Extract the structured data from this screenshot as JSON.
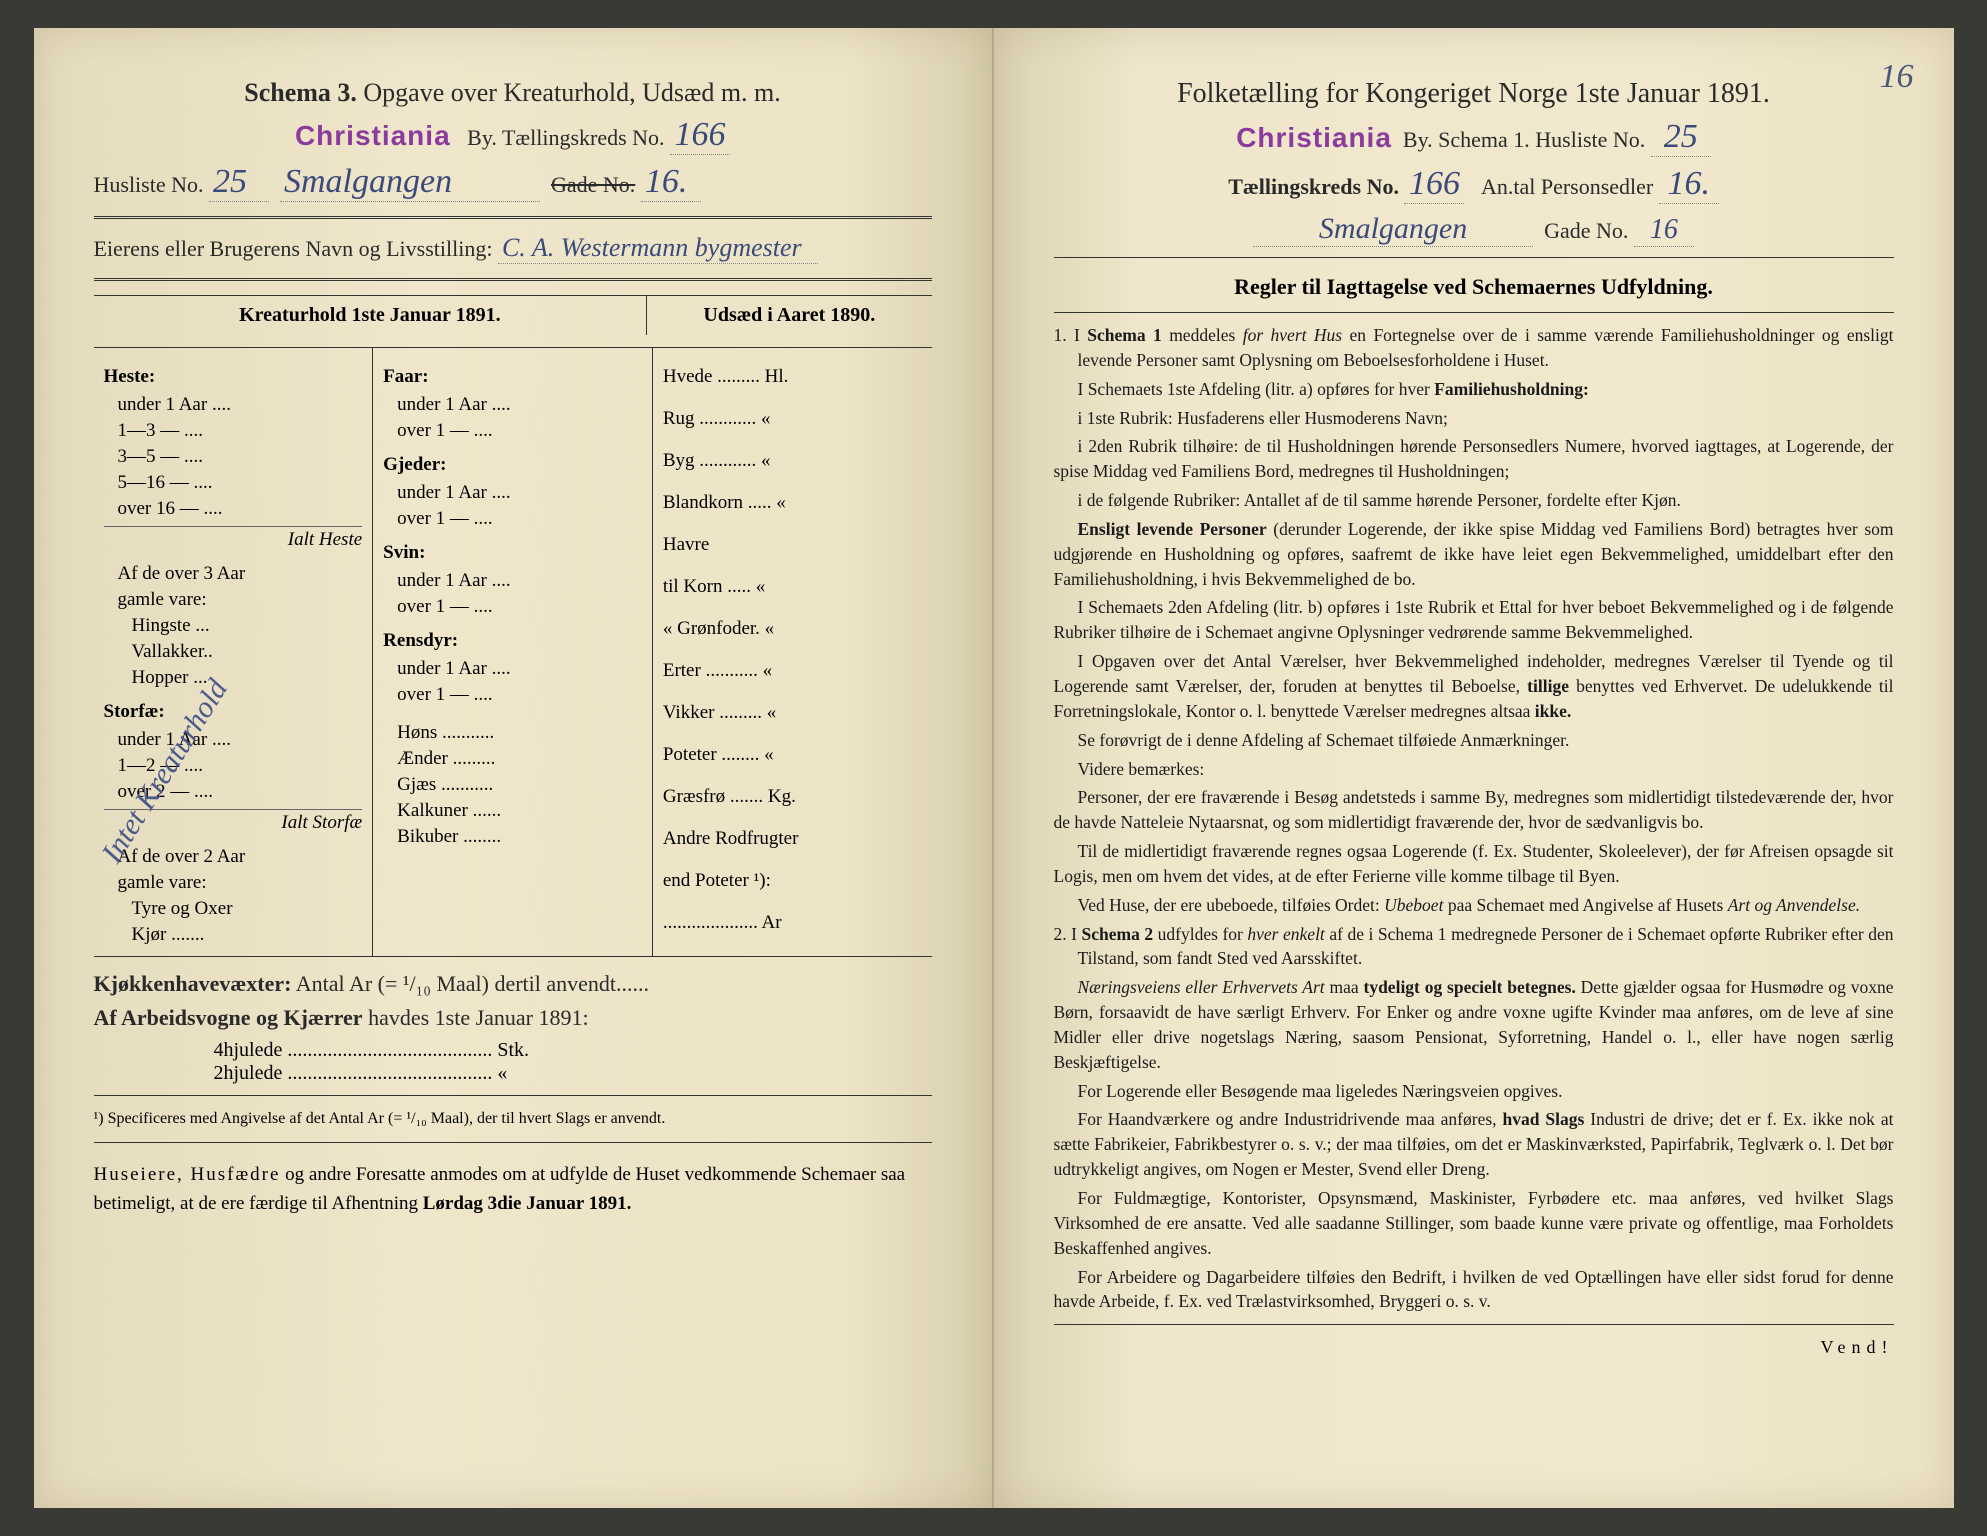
{
  "meta": {
    "background": "#3a3a35",
    "paper_left": "#efe6cb",
    "paper_right": "#f1e8cd",
    "ink": "#2a2a2a",
    "stamp_color": "#8b3a9e",
    "handwriting_color": "#3a4a7a"
  },
  "left": {
    "title_bold": "Schema 3.",
    "title_rest": "Opgave over Kreaturhold, Udsæd m. m.",
    "city_stamp": "Christiania",
    "by_label": "By.   Tællingskreds No.",
    "kreds_no": "166",
    "husliste_label": "Husliste No.",
    "husliste_no": "25",
    "street_hand": "Smalgangen",
    "gade_label": "Gade No.",
    "gade_no": "16.",
    "owner_label": "Eierens eller Brugerens Navn og Livsstilling:",
    "owner_hand": "C. A. Westermann bygmester",
    "table_header_left": "Kreaturhold 1ste Januar 1891.",
    "table_header_right": "Udsæd i Aaret 1890.",
    "diag_note": "Intet Kreaturhold",
    "col1": {
      "heste": "Heste:",
      "heste_rows": [
        "under 1 Aar ....",
        "1—3   —  ....",
        "3—5   —  ....",
        "5—16  —  ....",
        "over 16 — ...."
      ],
      "ialt_heste": "Ialt Heste",
      "af3": "Af de over 3 Aar",
      "gamle": "gamle vare:",
      "gamle_rows": [
        "Hingste ...",
        "Vallakker..",
        "Hopper ..."
      ],
      "storfe": "Storfæ:",
      "storfe_rows": [
        "under 1 Aar ....",
        "1—2   — ....",
        "over 2  — ...."
      ],
      "ialt_storfe": "Ialt Storfæ",
      "af2": "Af de over 2 Aar",
      "gamle2_rows": [
        "Tyre og Oxer",
        "Kjør ......."
      ]
    },
    "col2": {
      "faar": "Faar:",
      "faar_rows": [
        "under 1 Aar ....",
        "over 1  — ...."
      ],
      "gjeder": "Gjeder:",
      "gjeder_rows": [
        "under 1 Aar ....",
        "over 1  — ...."
      ],
      "svin": "Svin:",
      "svin_rows": [
        "under 1 Aar ....",
        "over 1  — ...."
      ],
      "rensdyr": "Rensdyr:",
      "rensdyr_rows": [
        "under 1 Aar ....",
        "over 1  — ...."
      ],
      "rest": [
        "Høns ...........",
        "Ænder .........",
        "Gjæs ...........",
        "Kalkuner ......",
        "Bikuber ........"
      ]
    },
    "col3": {
      "rows": [
        "Hvede ......... Hl.",
        "Rug ............ «",
        "Byg ............ «",
        "Blandkorn ..... «",
        "Havre",
        "   til Korn ..... «",
        "   « Grønfoder. «",
        "Erter ........... «",
        "Vikker ......... «",
        "Poteter ........ «",
        "Græsfrø ....... Kg.",
        "Andre Rodfrugter",
        "   end Poteter ¹):",
        ".................... Ar"
      ]
    },
    "kjokken": "Kjøkkenhavevæxter:  Antal Ar (= ¹/₁₀ Maal) dertil anvendt......",
    "vogne": "Af Arbeidsvogne og Kjærrer havdes 1ste Januar 1891:",
    "vogne_rows": [
      "4hjulede ......................................... Stk.",
      "2hjulede ......................................... «"
    ],
    "footnote": "¹) Specificeres med Angivelse af det Antal Ar (= ¹/₁₀ Maal), der til hvert Slags er anvendt.",
    "closing": "Huseiere, Husfædre og andre Foresatte anmodes om at udfylde de Huset vedkommende Schemaer saa betimeligt, at de ere færdige til Afhentning Lørdag 3die Januar 1891."
  },
  "right": {
    "corner_num": "16",
    "title": "Folketælling for Kongeriget Norge 1ste Januar 1891.",
    "city_stamp": "Christiania",
    "line2_a": "By.   Schema 1.   Husliste No.",
    "husliste_no": "25",
    "line3_a": "Tællingskreds No.",
    "kreds_no": "166",
    "line3_b": "An.tal Personsedler",
    "personsedler": "16.",
    "street_hand": "Smalgangen",
    "gade_label": "Gade No.",
    "gade_no": "16",
    "rules_title": "Regler til Iagttagelse ved Schemaernes Udfyldning.",
    "p": [
      "1. I <b>Schema 1</b> meddeles <em>for hvert Hus</em> en Fortegnelse over de i samme værende Familiehusholdninger og ensligt levende Personer samt Oplysning om Beboelsesforholdene i Huset.",
      "I Schemaets 1ste Afdeling (litr. a) opføres for hver <b>Familiehusholdning:</b>",
      "i 1ste Rubrik: Husfaderens eller Husmoderens Navn;",
      "i 2den Rubrik tilhøire: de til Husholdningen hørende Personsedlers Numere, hvorved iagttages, at Logerende, der spise Middag ved Familiens Bord, medregnes til Husholdningen;",
      "i de følgende Rubriker: Antallet af de til samme hørende Personer, fordelte efter Kjøn.",
      "<b>Ensligt levende Personer</b> (derunder Logerende, der ikke spise Middag ved Familiens Bord) betragtes hver som udgjørende en Husholdning og opføres, saafremt de ikke have leiet egen Bekvemmelighed, umiddelbart efter den Familiehusholdning, i hvis Bekvemmelighed de bo.",
      "I Schemaets 2den Afdeling (litr. b) opføres i 1ste Rubrik et Ettal for hver beboet Bekvemmelighed og i de følgende Rubriker tilhøire de i Schemaet angivne Oplysninger vedrørende samme Bekvemmelighed.",
      "I Opgaven over det Antal Værelser, hver Bekvemmelighed indeholder, medregnes Værelser til Tyende og til Logerende samt Værelser, der, foruden at benyttes til Beboelse, <b>tillige</b> benyttes ved Erhvervet. De udelukkende til Forretningslokale, Kontor o. l. benyttede Værelser medregnes altsaa <b>ikke.</b>",
      "Se forøvrigt de i denne Afdeling af Schemaet tilføiede Anmærkninger.",
      "Videre bemærkes:",
      "Personer, der ere fraværende i Besøg andetsteds i samme By, medregnes som midlertidigt tilstedeværende der, hvor de havde Natteleie Nytaarsnat, og som midlertidigt fraværende der, hvor de sædvanligvis bo.",
      "Til de midlertidigt fraværende regnes ogsaa Logerende (f. Ex. Studenter, Skoleelever), der før Afreisen opsagde sit Logis, men om hvem det vides, at de efter Ferierne ville komme tilbage til Byen.",
      "Ved Huse, der ere ubeboede, tilføies Ordet: <em>Ubeboet</em> paa Schemaet med Angivelse af Husets <em>Art og Anvendelse.</em>",
      "2. I <b>Schema 2</b> udfyldes for <em>hver enkelt</em> af de i Schema 1 medregnede Personer de i Schemaet opførte Rubriker efter den Tilstand, som fandt Sted ved Aarsskiftet.",
      "<em>Næringsveiens eller Erhvervets Art</em> maa <b>tydeligt og specielt betegnes.</b> Dette gjælder ogsaa for Husmødre og voxne Børn, forsaavidt de have særligt Erhverv. For Enker og andre voxne ugifte Kvinder maa anføres, om de leve af sine Midler eller drive nogetslags Næring, saasom Pensionat, Syforretning, Handel o. l., eller have nogen særlig Beskjæftigelse.",
      "For Logerende eller Besøgende maa ligeledes Næringsveien opgives.",
      "For Haandværkere og andre Industridrivende maa anføres, <b>hvad Slags</b> Industri de drive; det er f. Ex. ikke nok at sætte Fabrikeier, Fabrikbestyrer o. s. v.; der maa tilføies, om det er Maskinværksted, Papirfabrik, Teglværk o. l. Det bør udtrykkeligt angives, om Nogen er Mester, Svend eller Dreng.",
      "For Fuldmægtige, Kontorister, Opsynsmænd, Maskinister, Fyrbødere etc. maa anføres, ved hvilket Slags Virksomhed de ere ansatte. Ved alle saadanne Stillinger, som baade kunne være private og offentlige, maa Forholdets Beskaffenhed angives.",
      "For Arbeidere og Dagarbeidere tilføies den Bedrift, i hvilken de ved Optællingen have eller sidst forud for denne havde Arbeide, f. Ex. ved Trælastvirksomhed, Bryggeri o. s. v."
    ],
    "vend": "Vend!"
  }
}
